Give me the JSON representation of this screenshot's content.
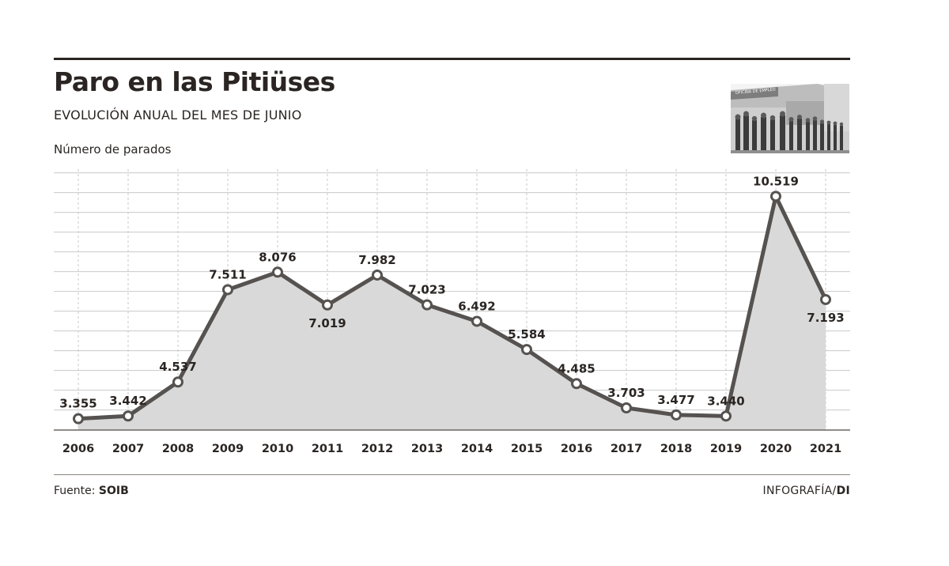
{
  "title": "Paro en las Pitiüses",
  "subtitle": "EVOLUCIÓN ANUAL DEL MES DE JUNIO",
  "ylabel": "Número de parados",
  "source_label": "Fuente:",
  "source_name": "SOIB",
  "credit_label": "INFOGRAFÍA/",
  "credit_name": "DI",
  "photo": {
    "sign_text": "OFICINA DE EMPLEO",
    "icon": "queue-photo-icon"
  },
  "colors": {
    "line": "#565250",
    "area": "#d9d9d9",
    "grid": "#c9c9c9",
    "text": "#2a2522",
    "marker_fill": "#ffffff"
  },
  "chart_data": {
    "type": "line",
    "title": "Paro en las Pitiüses",
    "subtitle": "EVOLUCIÓN ANUAL DEL MES DE JUNIO",
    "xlabel": "",
    "ylabel": "Número de parados",
    "ylim": [
      3000,
      11000
    ],
    "grid": true,
    "area_fill": true,
    "categories": [
      "2006",
      "2007",
      "2008",
      "2009",
      "2010",
      "2011",
      "2012",
      "2013",
      "2014",
      "2015",
      "2016",
      "2017",
      "2018",
      "2019",
      "2020",
      "2021"
    ],
    "values": [
      3355,
      3442,
      4537,
      7511,
      8076,
      7019,
      7982,
      7023,
      6492,
      5584,
      4485,
      3703,
      3477,
      3440,
      10519,
      7193
    ],
    "value_labels": [
      "3.355",
      "3.442",
      "4.537",
      "7.511",
      "8.076",
      "7.019",
      "7.982",
      "7.023",
      "6.492",
      "5.584",
      "4.485",
      "3.703",
      "3.477",
      "3.440",
      "10.519",
      "7.193"
    ],
    "label_positions": [
      "above",
      "above",
      "above",
      "above",
      "above",
      "below",
      "above",
      "above",
      "above",
      "above",
      "above",
      "above",
      "above",
      "above",
      "above",
      "below"
    ]
  }
}
